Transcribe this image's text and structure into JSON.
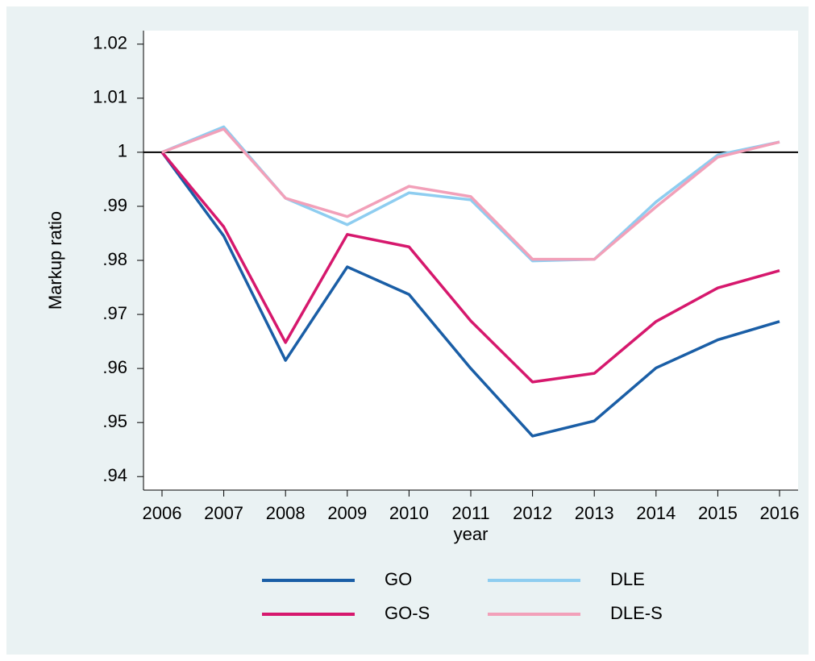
{
  "chart_data": {
    "type": "line",
    "ylabel": "Markup ratio",
    "xlabel": "year",
    "x": [
      2006,
      2007,
      2008,
      2009,
      2010,
      2011,
      2012,
      2013,
      2014,
      2015,
      2016
    ],
    "series": [
      {
        "name": "GO",
        "color": "#1a5ea6",
        "values": [
          1.0,
          0.9845,
          0.9615,
          0.9788,
          0.9737,
          0.96,
          0.9475,
          0.9503,
          0.9601,
          0.9653,
          0.9687
        ]
      },
      {
        "name": "DLE",
        "color": "#8ecdf0",
        "values": [
          1.0,
          1.0047,
          0.9915,
          0.9866,
          0.9925,
          0.9912,
          0.9799,
          0.9802,
          0.9908,
          0.9995,
          1.0019
        ]
      },
      {
        "name": "GO-S",
        "color": "#d6186d",
        "values": [
          1.0,
          0.9862,
          0.9648,
          0.9848,
          0.9825,
          0.9688,
          0.9575,
          0.9591,
          0.9687,
          0.9749,
          0.9781
        ]
      },
      {
        "name": "DLE-S",
        "color": "#f2a0b9",
        "values": [
          1.0,
          1.0043,
          0.9915,
          0.9881,
          0.9937,
          0.9918,
          0.9802,
          0.9802,
          0.9899,
          0.9991,
          1.0019
        ]
      }
    ],
    "reference_line": 1,
    "xlim": [
      2005.7,
      2016.3
    ],
    "ylim": [
      0.9375,
      1.0225
    ],
    "xticks": [
      2006,
      2007,
      2008,
      2009,
      2010,
      2011,
      2012,
      2013,
      2014,
      2015,
      2016
    ],
    "yticks": [
      {
        "value": 0.94,
        "label": ".94"
      },
      {
        "value": 0.95,
        "label": ".95"
      },
      {
        "value": 0.96,
        "label": ".96"
      },
      {
        "value": 0.97,
        "label": ".97"
      },
      {
        "value": 0.98,
        "label": ".98"
      },
      {
        "value": 0.99,
        "label": ".99"
      },
      1,
      1.01,
      1.02
    ],
    "legend": "bottom"
  }
}
